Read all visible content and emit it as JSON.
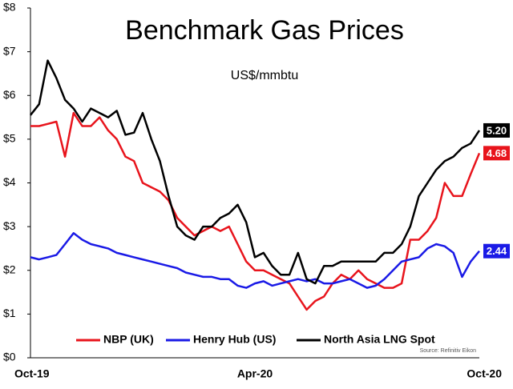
{
  "chart_data": {
    "type": "line",
    "title": "Benchmark Gas Prices",
    "subtitle": "US$/mmbtu",
    "source": "Source: Refinitiv Eikon",
    "categories": [
      "Oct-19",
      null,
      null,
      null,
      null,
      null,
      null,
      null,
      null,
      null,
      null,
      null,
      null,
      null,
      null,
      null,
      null,
      null,
      null,
      null,
      null,
      null,
      null,
      null,
      null,
      null,
      "Apr-20",
      null,
      null,
      null,
      null,
      null,
      null,
      null,
      null,
      null,
      null,
      null,
      null,
      null,
      null,
      null,
      null,
      null,
      null,
      null,
      null,
      null,
      null,
      null,
      null,
      null,
      "Oct-20"
    ],
    "series": [
      {
        "name": "NBP (UK)",
        "color": "#e8141c",
        "values": [
          5.3,
          5.3,
          5.35,
          5.4,
          4.6,
          5.6,
          5.3,
          5.3,
          5.5,
          5.2,
          5.0,
          4.6,
          4.5,
          4.0,
          3.9,
          3.8,
          3.6,
          3.2,
          3.0,
          2.8,
          2.9,
          3.0,
          2.9,
          3.0,
          2.6,
          2.2,
          2.0,
          2.0,
          1.9,
          1.8,
          1.7,
          1.4,
          1.1,
          1.3,
          1.4,
          1.7,
          1.9,
          1.8,
          2.0,
          1.8,
          1.7,
          1.6,
          1.6,
          1.7,
          2.7,
          2.7,
          2.9,
          3.2,
          4.0,
          3.7,
          3.7,
          4.2,
          4.68
        ],
        "value_labels": [
          null,
          null,
          null,
          null,
          null,
          null,
          null,
          null,
          null,
          null,
          null,
          null,
          null,
          null,
          null,
          null,
          null,
          null,
          null,
          null,
          null,
          null,
          null,
          null,
          null,
          null,
          null,
          null,
          null,
          null,
          null,
          null,
          null,
          null,
          null,
          null,
          null,
          null,
          null,
          null,
          null,
          null,
          null,
          null,
          null,
          null,
          null,
          null,
          null,
          null,
          null,
          null,
          "4.68"
        ]
      },
      {
        "name": "Henry Hub (US)",
        "color": "#1a1ae6",
        "values": [
          2.3,
          2.25,
          2.3,
          2.35,
          2.6,
          2.85,
          2.7,
          2.6,
          2.55,
          2.5,
          2.4,
          2.35,
          2.3,
          2.25,
          2.2,
          2.15,
          2.1,
          2.05,
          1.95,
          1.9,
          1.85,
          1.85,
          1.8,
          1.8,
          1.65,
          1.6,
          1.7,
          1.75,
          1.65,
          1.7,
          1.75,
          1.8,
          1.75,
          1.8,
          1.7,
          1.7,
          1.75,
          1.8,
          1.7,
          1.6,
          1.65,
          1.8,
          2.0,
          2.2,
          2.25,
          2.3,
          2.5,
          2.6,
          2.55,
          2.4,
          1.85,
          2.2,
          2.44
        ],
        "value_labels": [
          null,
          null,
          null,
          null,
          null,
          null,
          null,
          null,
          null,
          null,
          null,
          null,
          null,
          null,
          null,
          null,
          null,
          null,
          null,
          null,
          null,
          null,
          null,
          null,
          null,
          null,
          null,
          null,
          null,
          null,
          null,
          null,
          null,
          null,
          null,
          null,
          null,
          null,
          null,
          null,
          null,
          null,
          null,
          null,
          null,
          null,
          null,
          null,
          null,
          null,
          null,
          null,
          "2.44"
        ]
      },
      {
        "name": "North Asia LNG Spot",
        "color": "#000000",
        "values": [
          5.55,
          5.8,
          6.8,
          6.4,
          5.9,
          5.7,
          5.4,
          5.7,
          5.6,
          5.5,
          5.65,
          5.1,
          5.15,
          5.6,
          5.0,
          4.5,
          3.7,
          3.0,
          2.8,
          2.7,
          3.0,
          3.0,
          3.2,
          3.3,
          3.5,
          3.1,
          2.3,
          2.4,
          2.1,
          1.9,
          1.9,
          2.4,
          1.8,
          1.7,
          2.1,
          2.1,
          2.2,
          2.2,
          2.2,
          2.2,
          2.2,
          2.4,
          2.4,
          2.6,
          3.0,
          3.7,
          4.0,
          4.3,
          4.5,
          4.6,
          4.8,
          4.9,
          5.2
        ],
        "value_labels": [
          null,
          null,
          null,
          null,
          null,
          null,
          null,
          null,
          null,
          null,
          null,
          null,
          null,
          null,
          null,
          null,
          null,
          null,
          null,
          null,
          null,
          null,
          null,
          null,
          null,
          null,
          null,
          null,
          null,
          null,
          null,
          null,
          null,
          null,
          null,
          null,
          null,
          null,
          null,
          null,
          null,
          null,
          null,
          null,
          null,
          null,
          null,
          null,
          null,
          null,
          null,
          null,
          "5.20"
        ]
      }
    ],
    "ylim": [
      0,
      8
    ],
    "yticks": [
      {
        "value": 0,
        "label": "$0"
      },
      {
        "value": 1,
        "label": "$1"
      },
      {
        "value": 2,
        "label": "$2"
      },
      {
        "value": 3,
        "label": "$3"
      },
      {
        "value": 4,
        "label": "$4"
      },
      {
        "value": 5,
        "label": "$5"
      },
      {
        "value": 6,
        "label": "$6"
      },
      {
        "value": 7,
        "label": "$7"
      },
      {
        "value": 8,
        "label": "$8"
      }
    ],
    "grid": false,
    "legend": "bottom"
  }
}
